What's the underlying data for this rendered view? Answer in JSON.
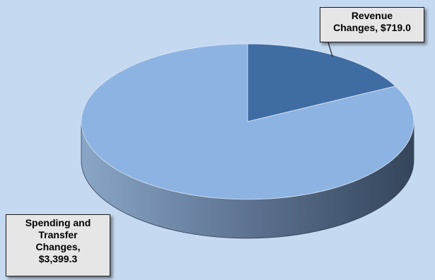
{
  "chart_data": {
    "type": "pie",
    "title": "",
    "style": "3d-exploded-depth",
    "slices": [
      {
        "label": "Revenue Changes",
        "value": 719.0,
        "display": "Revenue\nChanges, $719.0",
        "color": "#3f6da3"
      },
      {
        "label": "Spending and Transfer Changes",
        "value": 3399.3,
        "display": "Spending and\nTransfer\nChanges,\n$3,399.3",
        "color": "#8db3e2"
      }
    ],
    "start_angle_deg": 0,
    "direction": "clockwise",
    "legend": "none"
  },
  "colors": {
    "background": "#c5d9f1",
    "label_box": "#e6e6e6",
    "side_dark": "#36475e",
    "side_light": "#8aa6c6"
  }
}
